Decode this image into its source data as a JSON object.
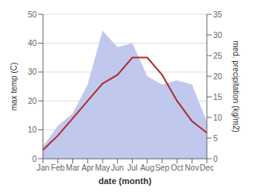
{
  "chart_data": {
    "type": "line",
    "xlabel": "date (month)",
    "ylabel": "max temp (C)",
    "y2label": "med. precipitation (kg/m2)",
    "categories": [
      "Jan",
      "Feb",
      "Mar",
      "Apr",
      "May",
      "Jun",
      "Jul",
      "Aug",
      "Sep",
      "Oct",
      "Nov",
      "Dec"
    ],
    "series": [
      {
        "type": "area",
        "axis": "y2",
        "color": "#c0c8ee",
        "values": [
          3,
          8,
          11,
          18,
          31,
          27,
          28,
          20,
          18,
          19,
          18,
          9
        ]
      },
      {
        "type": "line",
        "color": "#b03030",
        "values": [
          3,
          8,
          14,
          20,
          26,
          29,
          35,
          35,
          29,
          20,
          13,
          9
        ]
      }
    ],
    "ylim": [
      0,
      50
    ],
    "yticks": [
      0,
      10,
      20,
      30,
      40,
      50
    ],
    "y2lim": [
      0,
      35
    ],
    "y2ticks": [
      0,
      5,
      10,
      15,
      20,
      25,
      30,
      35
    ],
    "grid": true
  }
}
